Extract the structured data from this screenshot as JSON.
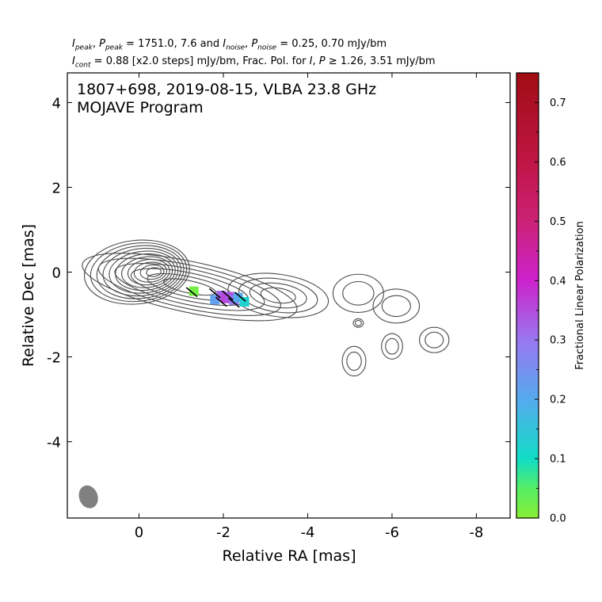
{
  "header": {
    "line1": {
      "i_peak_label": "I",
      "i_peak_sub": "peak",
      "p_peak_label": "P",
      "p_peak_sub": "peak",
      "peak_values": "1751.0, 7.6",
      "i_noise_label": "I",
      "i_noise_sub": "noise",
      "p_noise_label": "P",
      "p_noise_sub": "noise",
      "noise_values": "0.25, 0.70 mJy/bm"
    },
    "line2": {
      "i_cont_label": "I",
      "i_cont_sub": "cont",
      "cont_text": "= 0.88 [x2.0 steps] mJy/bm, Frac. Pol. for",
      "i_label": "I",
      "p_label": "P",
      "threshold_values": "≥  1.26, 3.51 mJy/bm"
    }
  },
  "chart_data": {
    "type": "contour",
    "title_line1": "1807+698, 2019-08-15, VLBA 23.8 GHz",
    "title_line2": "MOJAVE Program",
    "xlabel": "Relative RA [mas]",
    "ylabel": "Relative Dec [mas]",
    "xlim": [
      1.7,
      -8.8
    ],
    "ylim": [
      -5.8,
      4.7
    ],
    "x_reversed": true,
    "xticks": [
      0,
      -2,
      -4,
      -6,
      -8
    ],
    "xtick_labels": [
      "0",
      "-2",
      "-4",
      "-6",
      "-8"
    ],
    "yticks": [
      4,
      2,
      0,
      -2,
      -4
    ],
    "ytick_labels": [
      "4",
      "2",
      "0",
      "-2",
      "-4"
    ],
    "contour_levels_mJy_per_beam": [
      0.88,
      1.76,
      3.52,
      7.04,
      14.08,
      28.16,
      56.32,
      112.64,
      225.28,
      450.56,
      901.12
    ],
    "contour_color": "#4a4a4a",
    "core_position": [
      0.0,
      0.0
    ],
    "jet_components": [
      {
        "x": 0.05,
        "y": 0.0,
        "rx": 1.25,
        "ry": 0.75,
        "rot": -6
      },
      {
        "x": -1.2,
        "y": -0.35,
        "rx": 2.6,
        "ry": 0.6,
        "rot": 12
      },
      {
        "x": -3.3,
        "y": -0.55,
        "rx": 1.2,
        "ry": 0.5,
        "rot": 8
      },
      {
        "x": -5.2,
        "y": -0.5,
        "rx": 0.6,
        "ry": 0.45,
        "rot": 0
      },
      {
        "x": -6.1,
        "y": -0.8,
        "rx": 0.55,
        "ry": 0.4,
        "rot": 0
      },
      {
        "x": -7.0,
        "y": -1.6,
        "rx": 0.35,
        "ry": 0.3,
        "rot": 0
      },
      {
        "x": -5.1,
        "y": -2.1,
        "rx": 0.28,
        "ry": 0.35,
        "rot": 0
      },
      {
        "x": -6.0,
        "y": -1.75,
        "rx": 0.25,
        "ry": 0.3,
        "rot": 0
      },
      {
        "x": -5.2,
        "y": -1.2,
        "rx": 0.12,
        "ry": 0.1,
        "rot": 0
      }
    ],
    "polarization_pixels": [
      {
        "x": -1.3,
        "y": -0.45,
        "frac": 0.02
      },
      {
        "x": -1.8,
        "y": -0.65,
        "frac": 0.22
      },
      {
        "x": -1.95,
        "y": -0.55,
        "frac": 0.32
      },
      {
        "x": -2.05,
        "y": -0.62,
        "frac": 0.36
      },
      {
        "x": -2.15,
        "y": -0.58,
        "frac": 0.34
      },
      {
        "x": -2.25,
        "y": -0.66,
        "frac": 0.3
      },
      {
        "x": -2.35,
        "y": -0.6,
        "frac": 0.2
      },
      {
        "x": -2.5,
        "y": -0.7,
        "frac": 0.12
      }
    ],
    "evpa_ticks": [
      {
        "x": -1.25,
        "y": -0.47,
        "angle_deg": -40
      },
      {
        "x": -1.8,
        "y": -0.5,
        "angle_deg": -40
      },
      {
        "x": -1.95,
        "y": -0.7,
        "angle_deg": -40
      },
      {
        "x": -2.1,
        "y": -0.55,
        "angle_deg": -40
      },
      {
        "x": -2.25,
        "y": -0.72,
        "angle_deg": -40
      },
      {
        "x": -2.4,
        "y": -0.58,
        "angle_deg": -40
      }
    ],
    "beam": {
      "x": 1.2,
      "y": -5.3,
      "major_mas": 0.5,
      "minor_mas": 0.4,
      "pa_deg": -20,
      "color": "#808080"
    },
    "colorbar": {
      "label": "Fractional Linear Polarization",
      "range": [
        0.0,
        0.75
      ],
      "major_ticks": [
        0.0,
        0.1,
        0.2,
        0.3,
        0.4,
        0.5,
        0.6,
        0.7
      ],
      "major_tick_labels": [
        "0.0",
        "0.1",
        "0.2",
        "0.3",
        "0.4",
        "0.5",
        "0.6",
        "0.7"
      ],
      "minor_ticks": [
        0.05,
        0.15,
        0.25,
        0.35,
        0.45,
        0.55,
        0.65
      ],
      "colormap_stops": [
        {
          "v": 0.0,
          "color": "#88ee33"
        },
        {
          "v": 0.05,
          "color": "#55ee66"
        },
        {
          "v": 0.1,
          "color": "#11dcc6"
        },
        {
          "v": 0.2,
          "color": "#55aaee"
        },
        {
          "v": 0.3,
          "color": "#9977f0"
        },
        {
          "v": 0.4,
          "color": "#cc22cc"
        },
        {
          "v": 0.5,
          "color": "#cc2277"
        },
        {
          "v": 0.6,
          "color": "#c01545"
        },
        {
          "v": 0.75,
          "color": "#a00d14"
        }
      ]
    }
  }
}
